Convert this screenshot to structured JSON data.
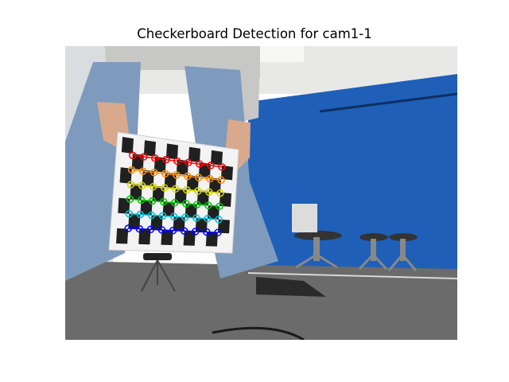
{
  "figure": {
    "title": "Checkerboard Detection for cam1-1"
  },
  "image": {
    "scene": "person-holding-checkerboard-in-blue-walled-room",
    "colors": {
      "wall_blue": "#1f5fb8",
      "floor": "#6b6b6b",
      "jeans": "#7e9bbd",
      "board": "#f3f3f3",
      "square": "#202020"
    }
  },
  "detection": {
    "board_cols": 7,
    "board_rows": 6,
    "corners_per_row": 9,
    "corner_rows": 6,
    "row_colors": [
      "#ff0000",
      "#ff8c00",
      "#d8d800",
      "#00c800",
      "#00c0d8",
      "#0000ff"
    ]
  }
}
